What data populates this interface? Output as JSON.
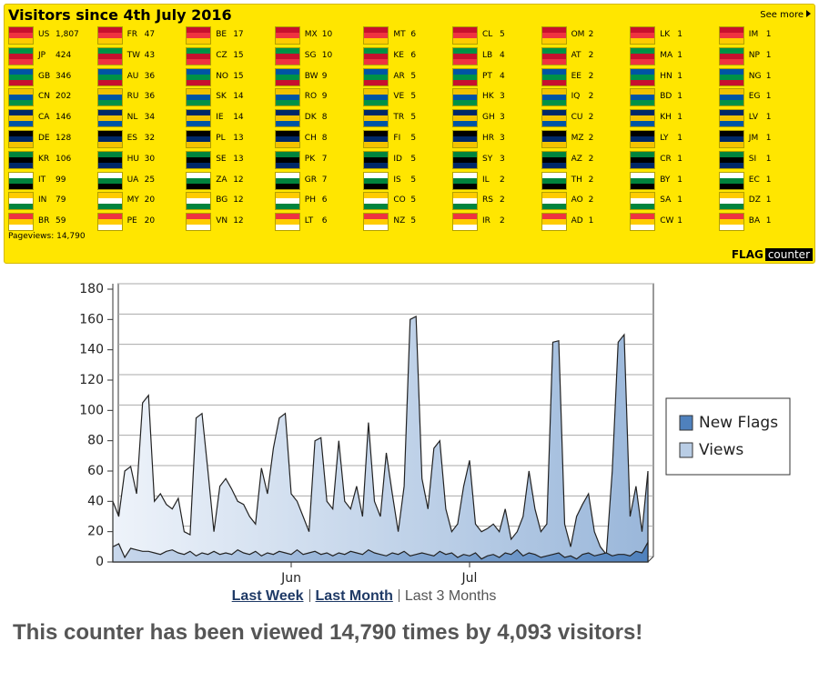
{
  "header": {
    "title": "Visitors since 4th July 2016",
    "see_more": "See more",
    "pageviews": "Pageviews: 14,790",
    "logo_flag": "FLAG",
    "logo_counter": "counter"
  },
  "flags": {
    "columns": [
      [
        {
          "code": "US",
          "count": "1,807"
        },
        {
          "code": "JP",
          "count": "424"
        },
        {
          "code": "GB",
          "count": "346"
        },
        {
          "code": "CN",
          "count": "202"
        },
        {
          "code": "CA",
          "count": "146"
        },
        {
          "code": "DE",
          "count": "128"
        },
        {
          "code": "KR",
          "count": "106"
        },
        {
          "code": "IT",
          "count": "99"
        },
        {
          "code": "IN",
          "count": "79"
        },
        {
          "code": "BR",
          "count": "59"
        }
      ],
      [
        {
          "code": "FR",
          "count": "47"
        },
        {
          "code": "TW",
          "count": "43"
        },
        {
          "code": "AU",
          "count": "36"
        },
        {
          "code": "RU",
          "count": "36"
        },
        {
          "code": "NL",
          "count": "34"
        },
        {
          "code": "ES",
          "count": "32"
        },
        {
          "code": "HU",
          "count": "30"
        },
        {
          "code": "UA",
          "count": "25"
        },
        {
          "code": "MY",
          "count": "20"
        },
        {
          "code": "PE",
          "count": "20"
        }
      ],
      [
        {
          "code": "BE",
          "count": "17"
        },
        {
          "code": "CZ",
          "count": "15"
        },
        {
          "code": "NO",
          "count": "15"
        },
        {
          "code": "SK",
          "count": "14"
        },
        {
          "code": "IE",
          "count": "14"
        },
        {
          "code": "PL",
          "count": "13"
        },
        {
          "code": "SE",
          "count": "13"
        },
        {
          "code": "ZA",
          "count": "12"
        },
        {
          "code": "BG",
          "count": "12"
        },
        {
          "code": "VN",
          "count": "12"
        }
      ],
      [
        {
          "code": "MX",
          "count": "10"
        },
        {
          "code": "SG",
          "count": "10"
        },
        {
          "code": "BW",
          "count": "9"
        },
        {
          "code": "RO",
          "count": "9"
        },
        {
          "code": "DK",
          "count": "8"
        },
        {
          "code": "CH",
          "count": "8"
        },
        {
          "code": "PK",
          "count": "7"
        },
        {
          "code": "GR",
          "count": "7"
        },
        {
          "code": "PH",
          "count": "6"
        },
        {
          "code": "LT",
          "count": "6"
        }
      ],
      [
        {
          "code": "MT",
          "count": "6"
        },
        {
          "code": "KE",
          "count": "6"
        },
        {
          "code": "AR",
          "count": "5"
        },
        {
          "code": "VE",
          "count": "5"
        },
        {
          "code": "TR",
          "count": "5"
        },
        {
          "code": "FI",
          "count": "5"
        },
        {
          "code": "ID",
          "count": "5"
        },
        {
          "code": "IS",
          "count": "5"
        },
        {
          "code": "CO",
          "count": "5"
        },
        {
          "code": "NZ",
          "count": "5"
        }
      ],
      [
        {
          "code": "CL",
          "count": "5"
        },
        {
          "code": "LB",
          "count": "4"
        },
        {
          "code": "PT",
          "count": "4"
        },
        {
          "code": "HK",
          "count": "3"
        },
        {
          "code": "GH",
          "count": "3"
        },
        {
          "code": "HR",
          "count": "3"
        },
        {
          "code": "SY",
          "count": "3"
        },
        {
          "code": "IL",
          "count": "2"
        },
        {
          "code": "RS",
          "count": "2"
        },
        {
          "code": "IR",
          "count": "2"
        }
      ],
      [
        {
          "code": "OM",
          "count": "2"
        },
        {
          "code": "AT",
          "count": "2"
        },
        {
          "code": "EE",
          "count": "2"
        },
        {
          "code": "IQ",
          "count": "2"
        },
        {
          "code": "CU",
          "count": "2"
        },
        {
          "code": "MZ",
          "count": "2"
        },
        {
          "code": "AZ",
          "count": "2"
        },
        {
          "code": "TH",
          "count": "2"
        },
        {
          "code": "AO",
          "count": "2"
        },
        {
          "code": "AD",
          "count": "1"
        }
      ],
      [
        {
          "code": "LK",
          "count": "1"
        },
        {
          "code": "MA",
          "count": "1"
        },
        {
          "code": "HN",
          "count": "1"
        },
        {
          "code": "BD",
          "count": "1"
        },
        {
          "code": "KH",
          "count": "1"
        },
        {
          "code": "LY",
          "count": "1"
        },
        {
          "code": "CR",
          "count": "1"
        },
        {
          "code": "BY",
          "count": "1"
        },
        {
          "code": "SA",
          "count": "1"
        },
        {
          "code": "CW",
          "count": "1"
        }
      ],
      [
        {
          "code": "IM",
          "count": "1"
        },
        {
          "code": "NP",
          "count": "1"
        },
        {
          "code": "NG",
          "count": "1"
        },
        {
          "code": "EG",
          "count": "1"
        },
        {
          "code": "LV",
          "count": "1"
        },
        {
          "code": "JM",
          "count": "1"
        },
        {
          "code": "SI",
          "count": "1"
        },
        {
          "code": "EC",
          "count": "1"
        },
        {
          "code": "DZ",
          "count": "1"
        },
        {
          "code": "BA",
          "count": "1"
        }
      ]
    ]
  },
  "chart_data": {
    "type": "area",
    "categories": [
      null,
      null,
      null,
      null,
      null,
      null,
      null,
      null,
      null,
      null,
      null,
      null,
      null,
      null,
      null,
      null,
      null,
      null,
      null,
      null,
      null,
      null,
      null,
      null,
      null,
      null,
      null,
      null,
      null,
      null,
      "Jun",
      null,
      null,
      null,
      null,
      null,
      null,
      null,
      null,
      null,
      null,
      null,
      null,
      null,
      null,
      null,
      null,
      null,
      null,
      null,
      null,
      null,
      null,
      null,
      null,
      null,
      null,
      null,
      null,
      null,
      "Jul",
      null,
      null,
      null,
      null,
      null,
      null,
      null,
      null,
      null,
      null,
      null,
      null,
      null,
      null,
      null,
      null,
      null,
      null,
      null,
      null,
      null,
      null,
      null,
      null,
      null,
      null,
      null,
      null,
      null,
      null
    ],
    "series": [
      {
        "name": "New Flags",
        "color": "#4f81bd",
        "values": [
          10,
          12,
          3,
          9,
          8,
          7,
          7,
          6,
          5,
          7,
          8,
          6,
          5,
          7,
          4,
          6,
          5,
          7,
          5,
          6,
          5,
          8,
          6,
          5,
          7,
          4,
          6,
          5,
          7,
          6,
          5,
          8,
          5,
          6,
          7,
          5,
          6,
          4,
          6,
          5,
          7,
          6,
          5,
          8,
          6,
          5,
          4,
          6,
          5,
          7,
          4,
          5,
          6,
          5,
          4,
          7,
          5,
          6,
          3,
          5,
          4,
          6,
          2,
          4,
          5,
          3,
          6,
          5,
          8,
          4,
          6,
          5,
          3,
          4,
          5,
          6,
          3,
          4,
          2,
          5,
          6,
          4,
          5,
          6,
          4,
          5,
          5,
          4,
          7,
          6,
          13
        ]
      },
      {
        "name": "Views",
        "color": "#b9cde5",
        "values": [
          40,
          30,
          60,
          63,
          45,
          105,
          110,
          40,
          45,
          38,
          35,
          42,
          20,
          18,
          95,
          98,
          60,
          20,
          50,
          55,
          48,
          40,
          38,
          30,
          25,
          62,
          45,
          75,
          95,
          98,
          45,
          40,
          30,
          20,
          80,
          82,
          40,
          35,
          80,
          40,
          35,
          50,
          30,
          92,
          40,
          30,
          72,
          45,
          20,
          50,
          160,
          162,
          55,
          35,
          75,
          80,
          35,
          20,
          25,
          50,
          67,
          25,
          20,
          22,
          25,
          20,
          35,
          15,
          20,
          30,
          60,
          35,
          20,
          25,
          145,
          146,
          25,
          10,
          30,
          38,
          45,
          20,
          10,
          5,
          60,
          145,
          150,
          30,
          50,
          20,
          60
        ]
      }
    ],
    "ylim": [
      0,
      180
    ],
    "yticks": [
      0,
      20,
      40,
      60,
      80,
      100,
      120,
      140,
      160,
      180
    ],
    "grid": true,
    "legend": "right"
  },
  "links": [
    "Last Week",
    "Last Month",
    "Last 3 Months"
  ],
  "footer": "This counter has been viewed 14,790 times by 4,093 visitors!"
}
